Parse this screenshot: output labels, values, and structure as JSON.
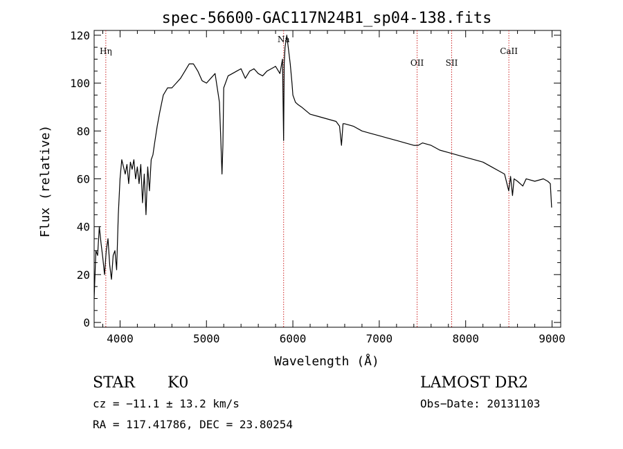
{
  "chart_data": {
    "type": "line",
    "title": "spec-56600-GAC117N24B1_sp04-138.fits",
    "xlabel": "Wavelength (Å)",
    "ylabel": "Flux (relative)",
    "xlim": [
      3700,
      9100
    ],
    "ylim": [
      -2,
      122
    ],
    "xticks": [
      4000,
      5000,
      6000,
      7000,
      8000,
      9000
    ],
    "yticks": [
      0,
      20,
      40,
      60,
      80,
      100,
      120
    ],
    "grid": false,
    "series": [
      {
        "x": [
          3700,
          3720,
          3740,
          3760,
          3780,
          3800,
          3820,
          3840,
          3860,
          3880,
          3900,
          3920,
          3940,
          3960,
          3980,
          4000,
          4020,
          4040,
          4060,
          4080,
          4100,
          4120,
          4140,
          4160,
          4180,
          4200,
          4220,
          4240,
          4260,
          4280,
          4300,
          4320,
          4340,
          4360,
          4380,
          4400,
          4430,
          4460,
          4500,
          4550,
          4600,
          4650,
          4700,
          4750,
          4800,
          4850,
          4900,
          4950,
          5000,
          5050,
          5100,
          5150,
          5170,
          5180,
          5190,
          5200,
          5250,
          5300,
          5350,
          5400,
          5450,
          5500,
          5550,
          5600,
          5650,
          5700,
          5750,
          5800,
          5850,
          5880,
          5893,
          5900,
          5910,
          5930,
          5950,
          5970,
          5990,
          6000,
          6030,
          6060,
          6100,
          6200,
          6300,
          6400,
          6500,
          6540,
          6563,
          6580,
          6600,
          6700,
          6800,
          6900,
          7000,
          7100,
          7200,
          7300,
          7400,
          7450,
          7500,
          7600,
          7700,
          7800,
          7900,
          8000,
          8100,
          8200,
          8300,
          8400,
          8450,
          8498,
          8520,
          8542,
          8560,
          8600,
          8662,
          8700,
          8800,
          8900,
          8950,
          8980,
          8995
        ],
        "y": [
          10,
          30,
          28,
          40,
          33,
          27,
          20,
          30,
          35,
          24,
          18,
          28,
          30,
          22,
          45,
          60,
          68,
          65,
          62,
          66,
          58,
          67,
          64,
          68,
          60,
          65,
          58,
          66,
          50,
          62,
          45,
          65,
          55,
          68,
          70,
          75,
          82,
          88,
          95,
          98,
          98,
          100,
          102,
          105,
          108,
          108,
          105,
          101,
          100,
          102,
          104,
          92,
          72,
          62,
          74,
          98,
          103,
          104,
          105,
          106,
          102,
          105,
          106,
          104,
          103,
          105,
          106,
          107,
          104,
          110,
          76,
          108,
          115,
          120,
          114,
          108,
          100,
          95,
          92,
          91,
          90,
          87,
          86,
          85,
          84,
          82,
          74,
          83,
          83,
          82,
          80,
          79,
          78,
          77,
          76,
          75,
          74,
          74,
          75,
          74,
          72,
          71,
          70,
          69,
          68,
          67,
          65,
          63,
          62,
          55,
          61,
          53,
          60,
          59,
          57,
          60,
          59,
          60,
          59,
          58,
          48
        ],
        "color": "#000000"
      }
    ],
    "lines": [
      {
        "label": "Hη",
        "x": 3835
      },
      {
        "label": "Na",
        "x": 5893
      },
      {
        "label": "OII",
        "x": 7438
      },
      {
        "label": "SII",
        "x": 7838
      },
      {
        "label": "CaII",
        "x": 8500
      }
    ],
    "line_color": "#cc2222"
  },
  "info": {
    "class_label": "STAR",
    "subclass": "K0",
    "survey": "LAMOST DR2",
    "cz": "cz = −11.1 ± 13.2 km/s",
    "obs_date": "Obs−Date: 20131103",
    "coords": "RA = 117.41786, DEC =  23.80254"
  }
}
